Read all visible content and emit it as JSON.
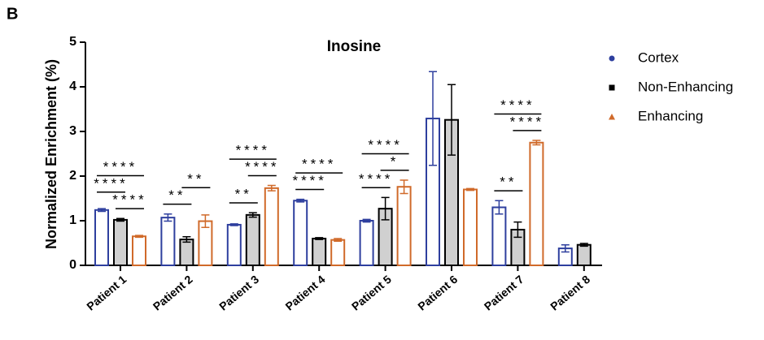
{
  "chart_data": {
    "type": "bar",
    "panel_label": "B",
    "title": "Inosine",
    "y_label": "Normalized Enrichment (%)",
    "categories": [
      "Patient 1",
      "Patient 2",
      "Patient 3",
      "Patient 4",
      "Patient 5",
      "Patient 6",
      "Patient 7",
      "Patient 8"
    ],
    "series": [
      {
        "name": "Cortex",
        "color": "#2e3f9e",
        "fill": "#ffffff",
        "marker": "circle",
        "values": [
          1.24,
          1.07,
          0.91,
          1.45,
          1.0,
          3.29,
          1.3,
          0.38
        ],
        "errors": [
          0.03,
          0.08,
          0.02,
          0.03,
          0.03,
          1.05,
          0.15,
          0.08
        ]
      },
      {
        "name": "Non-Enhancing",
        "color": "#000000",
        "fill": "#d0d0d0",
        "marker": "square",
        "values": [
          1.02,
          0.58,
          1.13,
          0.6,
          1.27,
          3.26,
          0.8,
          0.46
        ],
        "errors": [
          0.03,
          0.06,
          0.05,
          0.02,
          0.25,
          0.79,
          0.17,
          0.03
        ]
      },
      {
        "name": "Enhancing",
        "color": "#d06a2a",
        "fill": "#ffffff",
        "marker": "triangle",
        "values": [
          0.65,
          0.99,
          1.73,
          0.57,
          1.76,
          1.7,
          2.75,
          null
        ],
        "errors": [
          0.02,
          0.14,
          0.06,
          0.03,
          0.15,
          0.02,
          0.05,
          null
        ]
      }
    ],
    "annotations": [
      {
        "category": "Patient 1",
        "between": [
          "Non-Enhancing",
          "Enhancing"
        ],
        "label": "****"
      },
      {
        "category": "Patient 1",
        "between": [
          "Cortex",
          "Non-Enhancing"
        ],
        "label": "****"
      },
      {
        "category": "Patient 1",
        "between": [
          "Cortex",
          "Enhancing"
        ],
        "label": "****"
      },
      {
        "category": "Patient 2",
        "between": [
          "Cortex",
          "Non-Enhancing"
        ],
        "label": "**"
      },
      {
        "category": "Patient 2",
        "between": [
          "Non-Enhancing",
          "Enhancing"
        ],
        "label": "**"
      },
      {
        "category": "Patient 3",
        "between": [
          "Cortex",
          "Non-Enhancing"
        ],
        "label": "**"
      },
      {
        "category": "Patient 3",
        "between": [
          "Non-Enhancing",
          "Enhancing"
        ],
        "label": "****"
      },
      {
        "category": "Patient 3",
        "between": [
          "Cortex",
          "Enhancing"
        ],
        "label": "****"
      },
      {
        "category": "Patient 4",
        "between": [
          "Cortex",
          "Non-Enhancing"
        ],
        "label": "****"
      },
      {
        "category": "Patient 4",
        "between": [
          "Cortex",
          "Enhancing"
        ],
        "label": "****"
      },
      {
        "category": "Patient 5",
        "between": [
          "Cortex",
          "Non-Enhancing"
        ],
        "label": "****"
      },
      {
        "category": "Patient 5",
        "between": [
          "Non-Enhancing",
          "Enhancing"
        ],
        "label": "*"
      },
      {
        "category": "Patient 5",
        "between": [
          "Cortex",
          "Enhancing"
        ],
        "label": "****"
      },
      {
        "category": "Patient 7",
        "between": [
          "Cortex",
          "Non-Enhancing"
        ],
        "label": "**"
      },
      {
        "category": "Patient 7",
        "between": [
          "Non-Enhancing",
          "Enhancing"
        ],
        "label": "****"
      },
      {
        "category": "Patient 7",
        "between": [
          "Cortex",
          "Enhancing"
        ],
        "label": "****"
      }
    ],
    "ylim": [
      0,
      5
    ],
    "yticks": [
      0,
      1,
      2,
      3,
      4,
      5
    ],
    "legend": "right"
  }
}
